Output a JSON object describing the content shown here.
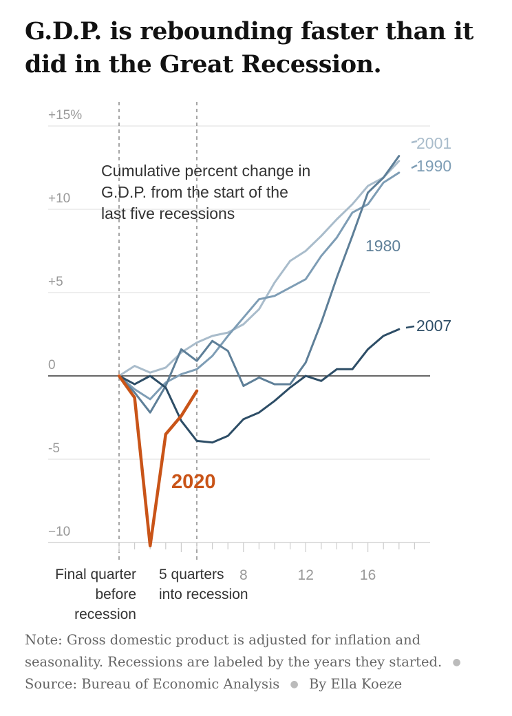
{
  "title": "G.D.P. is rebounding faster than it did in the Great Recession.",
  "note": {
    "text": "Note: Gross domestic product is adjusted for inflation and seasonality. Recessions are labeled by the years they started.",
    "source": "Source: Bureau of Economic Analysis",
    "byline": "By Ella Koeze"
  },
  "chart_data": {
    "type": "line",
    "annotation": [
      "Cumulative percent change in",
      "G.D.P. from the start of the",
      "last five recessions"
    ],
    "xlim": [
      0,
      19
    ],
    "ylim": [
      -10,
      15
    ],
    "y_ticks": [
      {
        "value": 15,
        "label": "+15%"
      },
      {
        "value": 10,
        "label": "+10"
      },
      {
        "value": 5,
        "label": "+5"
      },
      {
        "value": 0,
        "label": "0"
      },
      {
        "value": -5,
        "label": "-5"
      },
      {
        "value": -10,
        "label": "−10"
      }
    ],
    "x_tick_labels": [
      {
        "value": 8,
        "label": "8"
      },
      {
        "value": 12,
        "label": "12"
      },
      {
        "value": 16,
        "label": "16"
      }
    ],
    "x_markers": [
      {
        "value": 0,
        "lines": [
          "Final quarter",
          "before",
          "recession"
        ]
      },
      {
        "value": 5,
        "lines": [
          "5 quarters",
          "into recession"
        ]
      }
    ],
    "grid": true,
    "series": [
      {
        "name": "2001",
        "color": "#a9bccb",
        "x": [
          0,
          1,
          2,
          3,
          4,
          5,
          6,
          7,
          8,
          9,
          10,
          11,
          12,
          13,
          14,
          15,
          16,
          17,
          18
        ],
        "values": [
          0,
          0.6,
          0.2,
          0.5,
          1.4,
          2.0,
          2.4,
          2.6,
          3.1,
          4.0,
          5.6,
          6.9,
          7.5,
          8.4,
          9.4,
          10.3,
          11.4,
          11.9,
          12.9
        ]
      },
      {
        "name": "1990",
        "color": "#7e9db5",
        "x": [
          0,
          1,
          2,
          3,
          4,
          5,
          6,
          7,
          8,
          9,
          10,
          11,
          12,
          13,
          14,
          15,
          16,
          17,
          18
        ],
        "values": [
          0,
          -0.8,
          -1.4,
          -0.4,
          0.1,
          0.4,
          1.2,
          2.4,
          3.5,
          4.6,
          4.8,
          5.3,
          5.8,
          7.2,
          8.3,
          9.8,
          10.3,
          11.6,
          12.2
        ]
      },
      {
        "name": "1980",
        "color": "#5e7f98",
        "x": [
          0,
          1,
          2,
          3,
          4,
          5,
          6,
          7,
          8,
          9,
          10,
          11,
          12,
          13,
          14,
          15,
          16,
          17,
          18
        ],
        "values": [
          0,
          -1.0,
          -2.2,
          -0.6,
          1.6,
          0.9,
          2.1,
          1.5,
          -0.6,
          -0.1,
          -0.5,
          -0.5,
          0.8,
          3.2,
          5.9,
          8.4,
          11.0,
          11.9,
          13.2
        ]
      },
      {
        "name": "2007",
        "color": "#2d4d66",
        "x": [
          0,
          1,
          2,
          3,
          4,
          5,
          6,
          7,
          8,
          9,
          10,
          11,
          12,
          13,
          14,
          15,
          16,
          17,
          18
        ],
        "values": [
          0,
          -0.5,
          0,
          -0.7,
          -2.7,
          -3.9,
          -4.0,
          -3.6,
          -2.6,
          -2.2,
          -1.5,
          -0.7,
          0,
          -0.3,
          0.4,
          0.4,
          1.6,
          2.4,
          2.8
        ]
      },
      {
        "name": "2020",
        "color": "#c95418",
        "x": [
          0,
          1,
          2,
          3,
          4,
          5
        ],
        "values": [
          0,
          -1.3,
          -10.2,
          -3.5,
          -2.4,
          -0.9
        ]
      }
    ]
  }
}
